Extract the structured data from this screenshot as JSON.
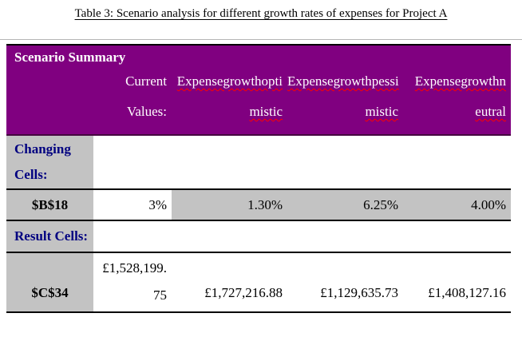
{
  "page": {
    "caption": "Table 3: Scenario analysis for different growth rates of expenses for Project A"
  },
  "colors": {
    "header-bg": "#800080",
    "header-text": "#ffffff",
    "label-bg": "#c3c3c3",
    "label-text": "#000080",
    "spellcheck": "#ff0000",
    "border": "#000000"
  },
  "table": {
    "header": {
      "title": "Scenario Summary",
      "columns": [
        {
          "line1": "Current",
          "line2": "Values:"
        },
        {
          "line1": "Expensegrowthopti",
          "line2": "mistic"
        },
        {
          "line1": "Expensegrowthpessi",
          "line2": "mistic"
        },
        {
          "line1": "Expensegrowthn",
          "line2": "eutral"
        }
      ]
    },
    "changing_cells": {
      "label_line1": "Changing",
      "label_line2": "Cells:"
    },
    "rows": {
      "b18": {
        "label": "$B$18",
        "current": "3%",
        "optimistic": "1.30%",
        "pessimistic": "6.25%",
        "neutral": "4.00%"
      },
      "result_label": "Result Cells:",
      "c34": {
        "label": "$C$34",
        "current_line1": "£1,528,199.",
        "current_line2": "75",
        "optimistic": "£1,727,216.88",
        "pessimistic": "£1,129,635.73",
        "neutral": "£1,408,127.16"
      }
    }
  }
}
